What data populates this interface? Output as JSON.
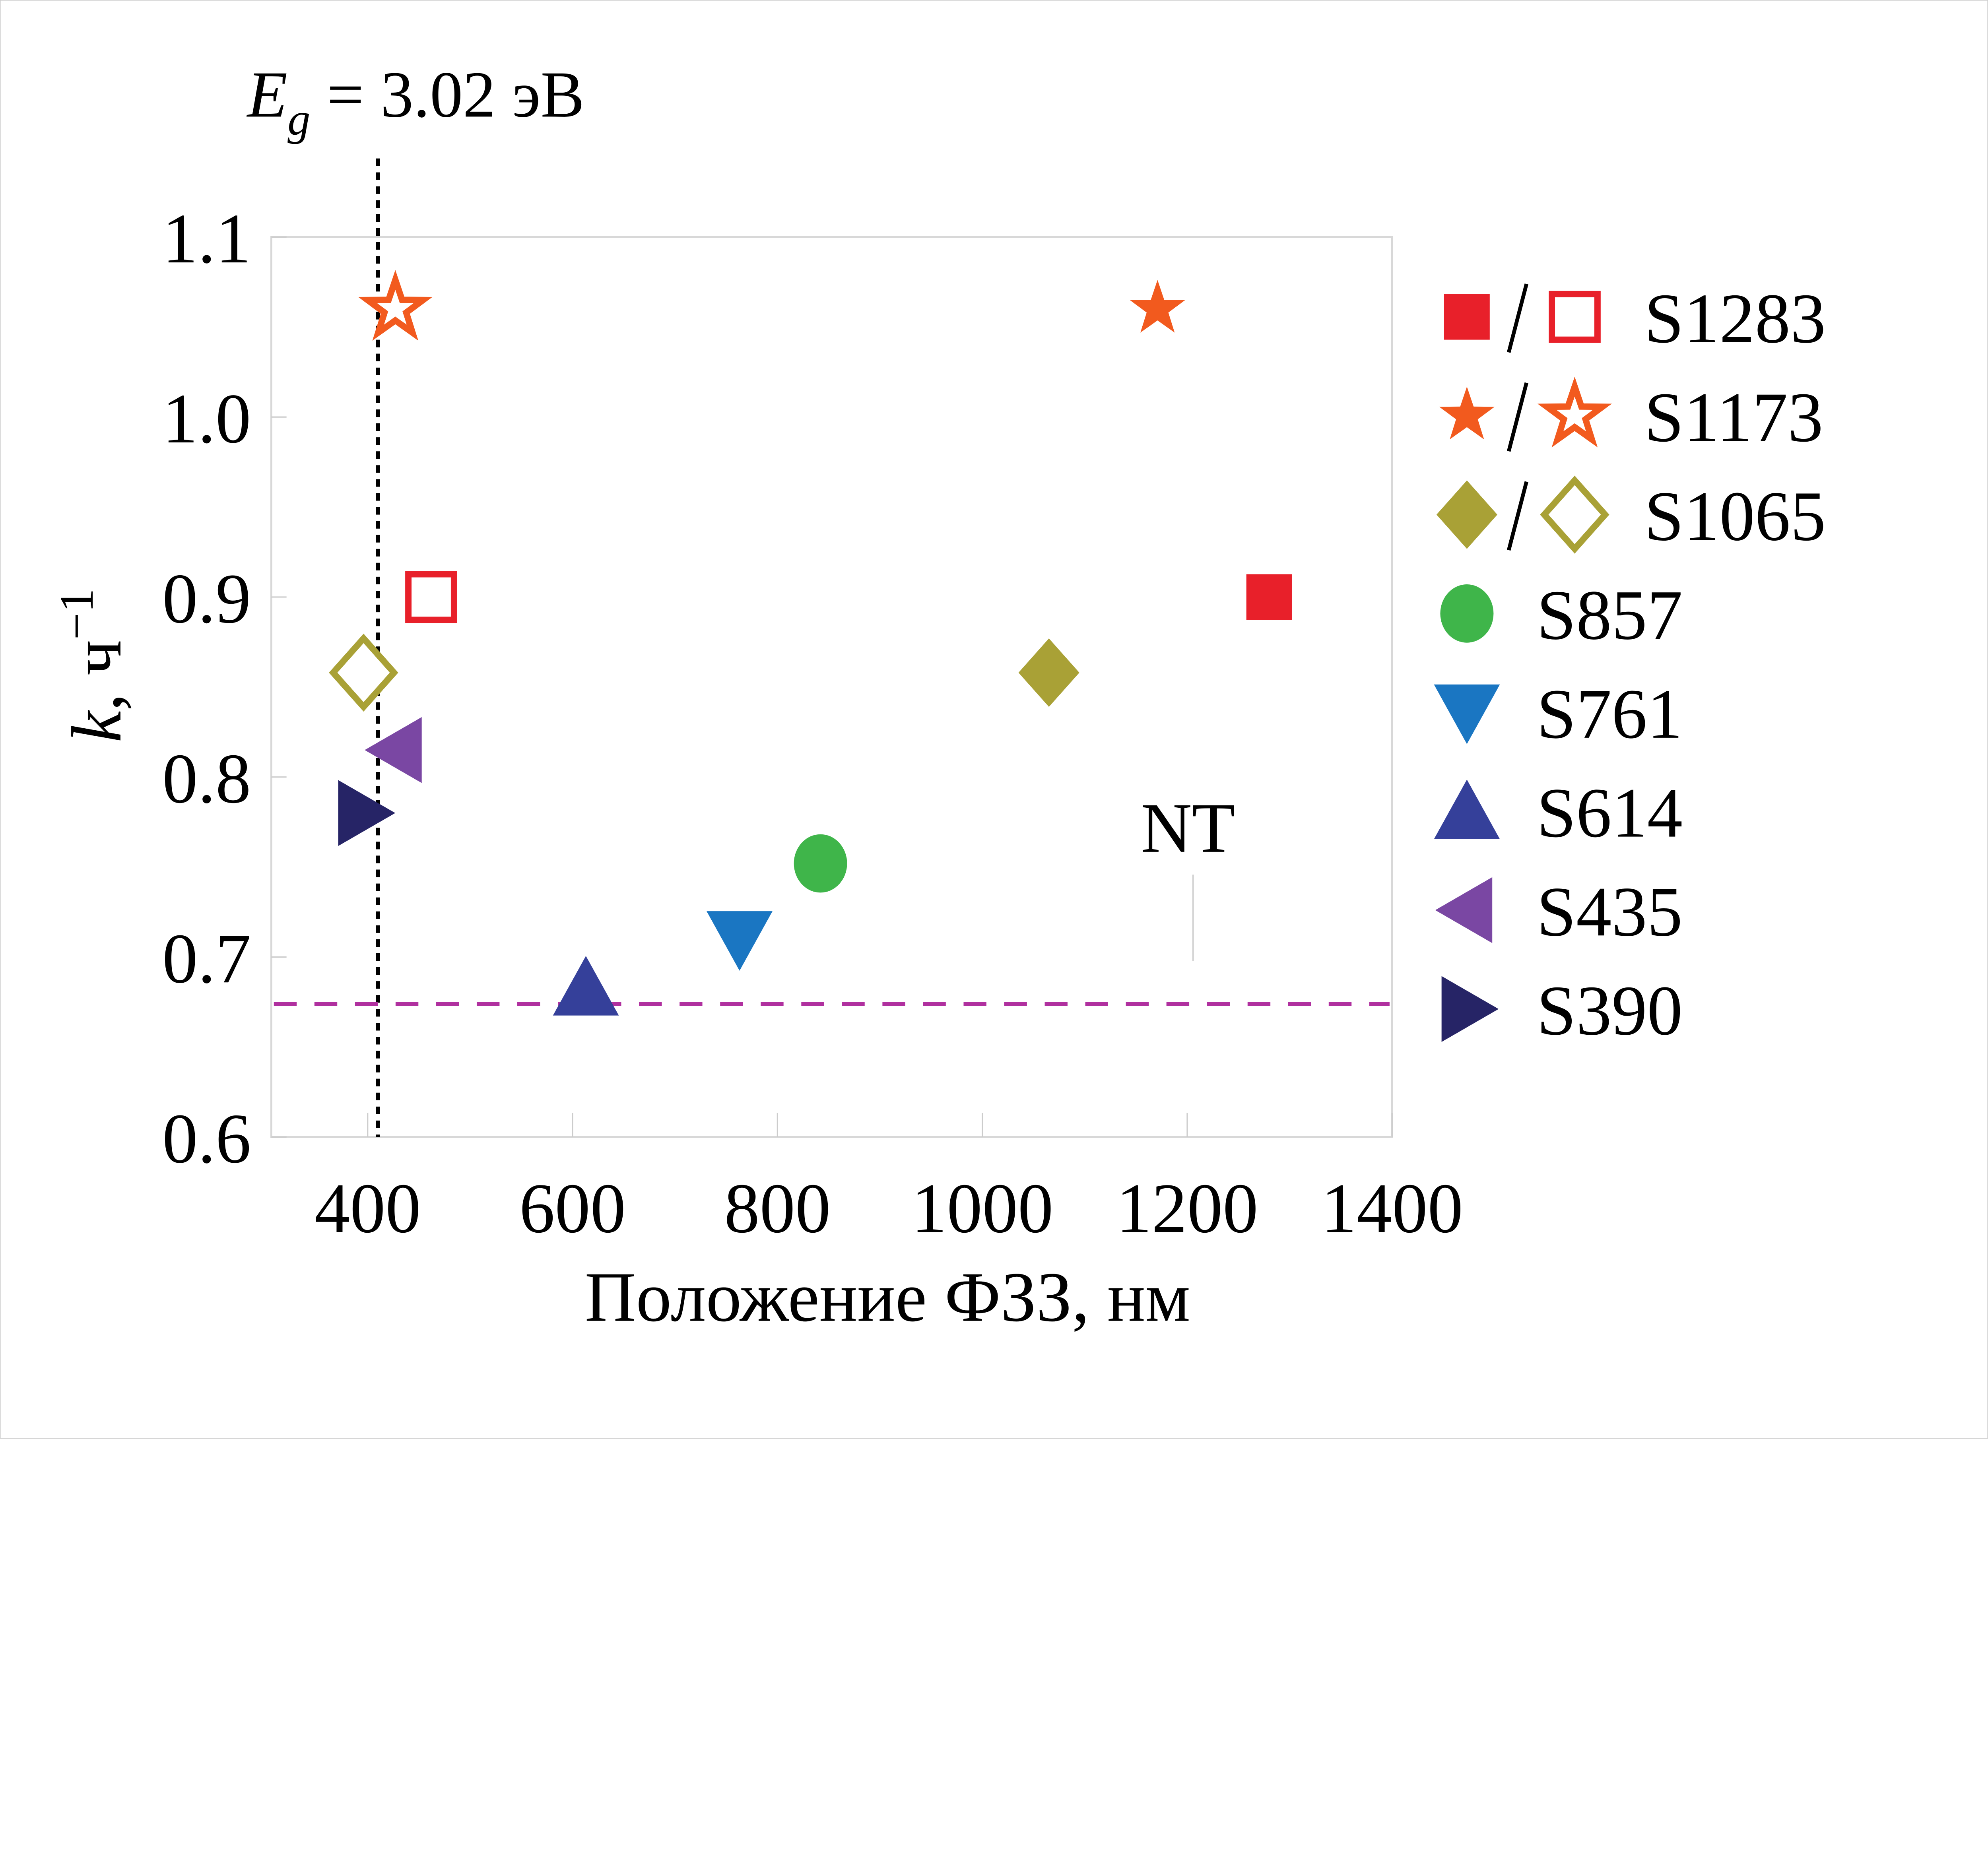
{
  "chart_data": {
    "type": "scatter",
    "title": "E_g = 3.02 эВ",
    "title_parts": {
      "E": "E",
      "sub": "g",
      "rest": " = 3.02 эВ"
    },
    "xlabel": "Положение ФЗЗ, нм",
    "ylabel_parts": {
      "k": "k",
      "rest": ", ч",
      "sup": "−1"
    },
    "xlim": [
      306,
      1400
    ],
    "ylim": [
      0.6,
      1.1
    ],
    "xticks": [
      "400",
      "600",
      "800",
      "1000",
      "1200",
      "1400"
    ],
    "xtick_values": [
      400,
      600,
      800,
      1000,
      1200,
      1400
    ],
    "yticks": [
      "0.6",
      "0.7",
      "0.8",
      "0.9",
      "1.0",
      "1.1"
    ],
    "ytick_values": [
      0.6,
      0.7,
      0.8,
      0.9,
      1.0,
      1.1
    ],
    "grid": false,
    "legend_placement": "right-outside",
    "annotation": "NT",
    "reference_lines": {
      "vertical_x": 410,
      "horizontal_y": 0.674
    },
    "series": [
      {
        "name": "S1283",
        "marker": "square",
        "color": "#e8202a",
        "points": [
          {
            "x": 1280,
            "y": 0.9,
            "filled": true
          },
          {
            "x": 462,
            "y": 0.9,
            "filled": false
          }
        ]
      },
      {
        "name": "S1173",
        "marker": "star",
        "color": "#f25a1e",
        "points": [
          {
            "x": 1171,
            "y": 1.06,
            "filled": true
          },
          {
            "x": 427,
            "y": 1.06,
            "filled": false
          }
        ]
      },
      {
        "name": "S1065",
        "marker": "diamond",
        "color": "#a9a136",
        "points": [
          {
            "x": 1065,
            "y": 0.858,
            "filled": true
          },
          {
            "x": 396,
            "y": 0.858,
            "filled": false
          }
        ]
      },
      {
        "name": "S857",
        "marker": "circle",
        "color": "#3fb54a",
        "points": [
          {
            "x": 842,
            "y": 0.752,
            "filled": true
          }
        ]
      },
      {
        "name": "S761",
        "marker": "triangle-down",
        "color": "#1a76c2",
        "points": [
          {
            "x": 763,
            "y": 0.71,
            "filled": true
          }
        ]
      },
      {
        "name": "S614",
        "marker": "triangle-up",
        "color": "#35409a",
        "points": [
          {
            "x": 613,
            "y": 0.683,
            "filled": true
          }
        ]
      },
      {
        "name": "S435",
        "marker": "triangle-left",
        "color": "#7a47a3",
        "points": [
          {
            "x": 428,
            "y": 0.815,
            "filled": true
          }
        ]
      },
      {
        "name": "S390",
        "marker": "triangle-right",
        "color": "#262466",
        "points": [
          {
            "x": 396,
            "y": 0.78,
            "filled": true
          }
        ]
      }
    ],
    "colors": {
      "vline": "#000000",
      "hline": "#b0309f",
      "frame": "#d0d0d0"
    }
  }
}
